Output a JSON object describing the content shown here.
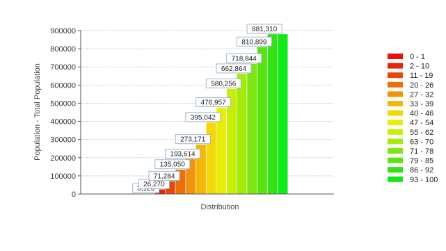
{
  "chart_data": {
    "type": "bar",
    "title": "",
    "xlabel": "Distribution",
    "ylabel": "Population - Total Population",
    "ylim": [
      0,
      900000
    ],
    "yticks": [
      0,
      100000,
      200000,
      300000,
      400000,
      500000,
      600000,
      700000,
      800000,
      900000
    ],
    "grid": true,
    "legend_position": "right",
    "categories": [
      "0 - 1",
      "2 - 10",
      "11 - 19",
      "20 - 26",
      "27 - 32",
      "33 - 39",
      "40 - 46",
      "47 - 54",
      "55 - 62",
      "63 - 70",
      "71 - 78",
      "79 - 85",
      "86 - 92",
      "93 - 100"
    ],
    "values": [
      3126,
      26270,
      71284,
      135050,
      193614,
      273171,
      395042,
      476957,
      580256,
      662864,
      718844,
      810899,
      881310,
      881310
    ],
    "data_labels": [
      "3,126",
      "26,270",
      "71,284",
      "135,050",
      "193,614",
      "273,171",
      "395,042",
      "476,957",
      "580,256",
      "662,864",
      "718,844",
      "810,899",
      "881,310",
      ""
    ],
    "colors": [
      "#e8100c",
      "#e6260b",
      "#e8470b",
      "#ee6d0d",
      "#f0930f",
      "#f3b70a",
      "#f2d80a",
      "#e9ed0a",
      "#c8ee0b",
      "#a3ea0d",
      "#7ee611",
      "#58e412",
      "#33e215",
      "#12e81c"
    ]
  }
}
